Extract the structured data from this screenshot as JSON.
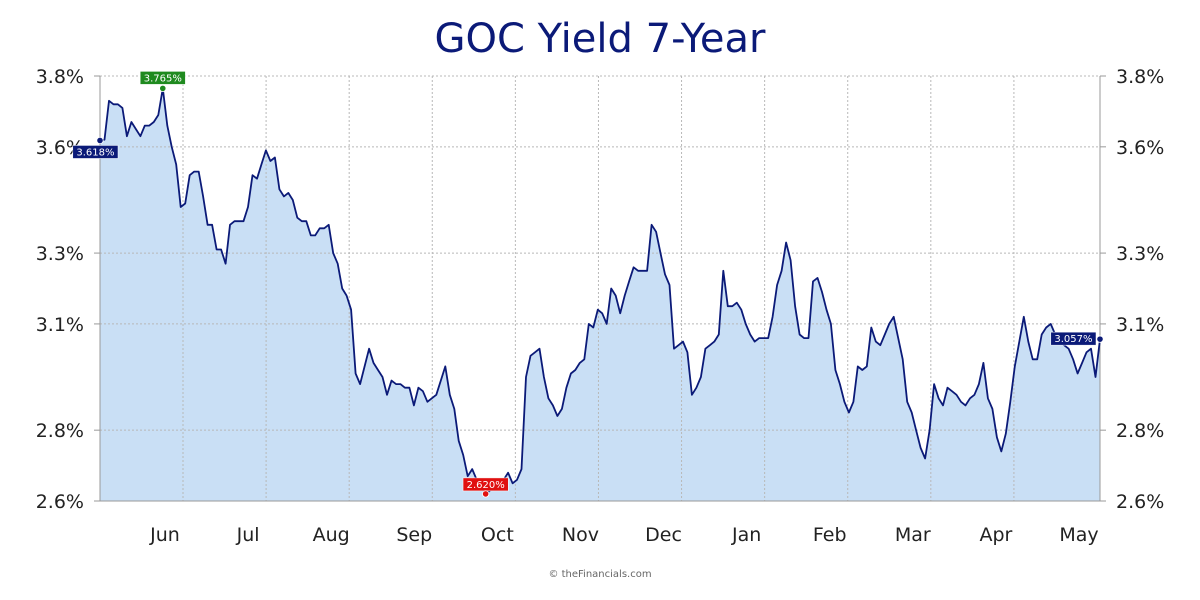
{
  "colors": {
    "line": "#0b1a78",
    "area": "#c9dff5",
    "grid": "#b8b8b8",
    "axis": "#999999",
    "high": "#1f8a1f",
    "low": "#e01010",
    "marker": "#0b1a78"
  },
  "watermark": "© theFinancials.com",
  "chart_data": {
    "type": "area",
    "title": "GOC Yield 7-Year",
    "xlabel": "",
    "ylabel": "",
    "ylim": [
      2.6,
      3.8
    ],
    "yticks": [
      "3.8%",
      "3.6%",
      "3.3%",
      "3.1%",
      "2.8%",
      "2.6%"
    ],
    "ytick_values": [
      3.8,
      3.6,
      3.3,
      3.1,
      2.8,
      2.6
    ],
    "y_axis_both_sides": true,
    "grid": true,
    "months": [
      "Jun",
      "Jul",
      "Aug",
      "Sep",
      "Oct",
      "Nov",
      "Dec",
      "Jan",
      "Feb",
      "Mar",
      "Apr",
      "May"
    ],
    "callouts": {
      "start": "3.618%",
      "high": "3.765%",
      "low": "2.620%",
      "end": "3.057%"
    },
    "series": [
      {
        "values": [
          3.618,
          3.62,
          3.73,
          3.72,
          3.72,
          3.71,
          3.63,
          3.67,
          3.65,
          3.63,
          3.66,
          3.66,
          3.67,
          3.69,
          3.765,
          3.66,
          3.6,
          3.55,
          3.43,
          3.44,
          3.52,
          3.53,
          3.53,
          3.46,
          3.38,
          3.38,
          3.31,
          3.31,
          3.27,
          3.38,
          3.39,
          3.39,
          3.39,
          3.43,
          3.52,
          3.51,
          3.55,
          3.59,
          3.56,
          3.57,
          3.48,
          3.46,
          3.47,
          3.45,
          3.4,
          3.39,
          3.39,
          3.35,
          3.35,
          3.37,
          3.37,
          3.38,
          3.3,
          3.27,
          3.2,
          3.18,
          3.14,
          2.96,
          2.93,
          2.98,
          3.03,
          2.99,
          2.97,
          2.95,
          2.9,
          2.94,
          2.93,
          2.93,
          2.92,
          2.92,
          2.87,
          2.92,
          2.91,
          2.88,
          2.89,
          2.9,
          2.94,
          2.98,
          2.9,
          2.86,
          2.77,
          2.73,
          2.67,
          2.69,
          2.66,
          2.64,
          2.62,
          2.63,
          2.65,
          2.66,
          2.66,
          2.68,
          2.65,
          2.66,
          2.69,
          2.95,
          3.01,
          3.02,
          3.03,
          2.95,
          2.89,
          2.87,
          2.84,
          2.86,
          2.92,
          2.96,
          2.97,
          2.99,
          3.0,
          3.1,
          3.09,
          3.14,
          3.13,
          3.1,
          3.2,
          3.18,
          3.13,
          3.18,
          3.22,
          3.26,
          3.25,
          3.25,
          3.25,
          3.38,
          3.36,
          3.3,
          3.24,
          3.21,
          3.03,
          3.04,
          3.05,
          3.02,
          2.9,
          2.92,
          2.95,
          3.03,
          3.04,
          3.05,
          3.07,
          3.25,
          3.15,
          3.15,
          3.16,
          3.14,
          3.1,
          3.07,
          3.05,
          3.06,
          3.06,
          3.06,
          3.12,
          3.21,
          3.25,
          3.33,
          3.28,
          3.15,
          3.07,
          3.06,
          3.06,
          3.22,
          3.23,
          3.19,
          3.14,
          3.1,
          2.97,
          2.93,
          2.88,
          2.85,
          2.88,
          2.98,
          2.97,
          2.98,
          3.09,
          3.05,
          3.04,
          3.07,
          3.1,
          3.12,
          3.06,
          3.0,
          2.88,
          2.85,
          2.8,
          2.75,
          2.72,
          2.8,
          2.93,
          2.89,
          2.87,
          2.92,
          2.91,
          2.9,
          2.88,
          2.87,
          2.89,
          2.9,
          2.93,
          2.99,
          2.89,
          2.86,
          2.78,
          2.74,
          2.79,
          2.88,
          2.98,
          3.05,
          3.12,
          3.05,
          3.0,
          3.0,
          3.07,
          3.09,
          3.1,
          3.07,
          3.05,
          3.04,
          3.03,
          3.0,
          2.96,
          2.99,
          3.02,
          3.03,
          2.95,
          3.057
        ]
      }
    ]
  }
}
